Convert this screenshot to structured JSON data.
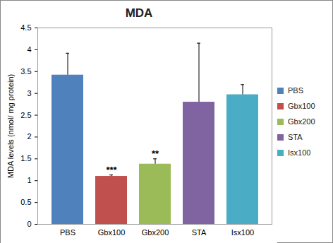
{
  "chart_data": {
    "type": "bar",
    "title": "MDA",
    "y_label": "MDA levels (nmol/ mg protein)",
    "categories": [
      "PBS",
      "Gbx100",
      "Gbx200",
      "STA",
      "Isx100"
    ],
    "values": [
      3.42,
      1.1,
      1.38,
      2.8,
      2.97
    ],
    "errors": [
      0.5,
      0.03,
      0.12,
      1.35,
      0.23
    ],
    "colors": [
      "#4F81BD",
      "#C0504D",
      "#9BBB59",
      "#8064A2",
      "#4BACC6"
    ],
    "annotations": [
      {
        "x": "Gbx100",
        "text": "***"
      },
      {
        "x": "Gbx200",
        "text": "**"
      }
    ],
    "ylim": [
      0,
      4.5
    ],
    "yticks": [
      0,
      0.5,
      1,
      1.5,
      2,
      2.5,
      3,
      3.5,
      4,
      4.5
    ],
    "grid": false,
    "legend": "right"
  }
}
